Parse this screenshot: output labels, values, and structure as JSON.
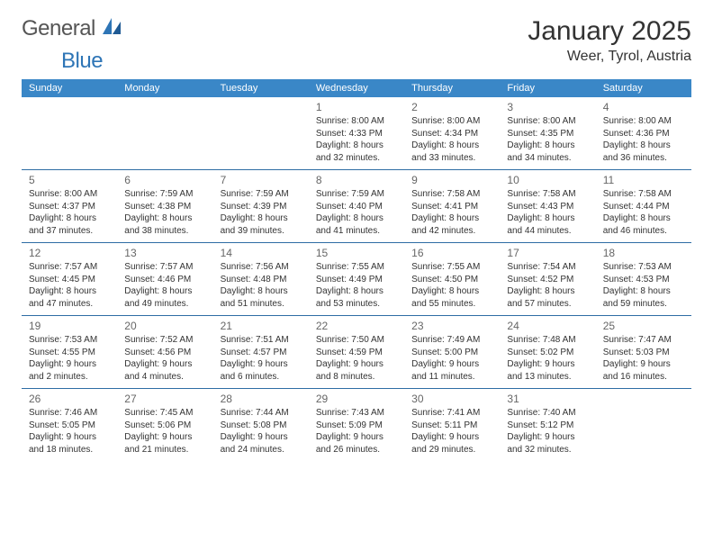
{
  "logo": {
    "text1": "General",
    "text2": "Blue",
    "icon_color": "#2e75b6"
  },
  "title": "January 2025",
  "location": "Weer, Tyrol, Austria",
  "colors": {
    "header_bg": "#3a87c7",
    "header_text": "#ffffff",
    "row_border": "#2e6da4",
    "daynum": "#666666",
    "body_text": "#333333",
    "background": "#ffffff"
  },
  "days_of_week": [
    "Sunday",
    "Monday",
    "Tuesday",
    "Wednesday",
    "Thursday",
    "Friday",
    "Saturday"
  ],
  "weeks": [
    [
      null,
      null,
      null,
      {
        "n": "1",
        "sr": "8:00 AM",
        "ss": "4:33 PM",
        "dh": "8",
        "dm": "32"
      },
      {
        "n": "2",
        "sr": "8:00 AM",
        "ss": "4:34 PM",
        "dh": "8",
        "dm": "33"
      },
      {
        "n": "3",
        "sr": "8:00 AM",
        "ss": "4:35 PM",
        "dh": "8",
        "dm": "34"
      },
      {
        "n": "4",
        "sr": "8:00 AM",
        "ss": "4:36 PM",
        "dh": "8",
        "dm": "36"
      }
    ],
    [
      {
        "n": "5",
        "sr": "8:00 AM",
        "ss": "4:37 PM",
        "dh": "8",
        "dm": "37"
      },
      {
        "n": "6",
        "sr": "7:59 AM",
        "ss": "4:38 PM",
        "dh": "8",
        "dm": "38"
      },
      {
        "n": "7",
        "sr": "7:59 AM",
        "ss": "4:39 PM",
        "dh": "8",
        "dm": "39"
      },
      {
        "n": "8",
        "sr": "7:59 AM",
        "ss": "4:40 PM",
        "dh": "8",
        "dm": "41"
      },
      {
        "n": "9",
        "sr": "7:58 AM",
        "ss": "4:41 PM",
        "dh": "8",
        "dm": "42"
      },
      {
        "n": "10",
        "sr": "7:58 AM",
        "ss": "4:43 PM",
        "dh": "8",
        "dm": "44"
      },
      {
        "n": "11",
        "sr": "7:58 AM",
        "ss": "4:44 PM",
        "dh": "8",
        "dm": "46"
      }
    ],
    [
      {
        "n": "12",
        "sr": "7:57 AM",
        "ss": "4:45 PM",
        "dh": "8",
        "dm": "47"
      },
      {
        "n": "13",
        "sr": "7:57 AM",
        "ss": "4:46 PM",
        "dh": "8",
        "dm": "49"
      },
      {
        "n": "14",
        "sr": "7:56 AM",
        "ss": "4:48 PM",
        "dh": "8",
        "dm": "51"
      },
      {
        "n": "15",
        "sr": "7:55 AM",
        "ss": "4:49 PM",
        "dh": "8",
        "dm": "53"
      },
      {
        "n": "16",
        "sr": "7:55 AM",
        "ss": "4:50 PM",
        "dh": "8",
        "dm": "55"
      },
      {
        "n": "17",
        "sr": "7:54 AM",
        "ss": "4:52 PM",
        "dh": "8",
        "dm": "57"
      },
      {
        "n": "18",
        "sr": "7:53 AM",
        "ss": "4:53 PM",
        "dh": "8",
        "dm": "59"
      }
    ],
    [
      {
        "n": "19",
        "sr": "7:53 AM",
        "ss": "4:55 PM",
        "dh": "9",
        "dm": "2"
      },
      {
        "n": "20",
        "sr": "7:52 AM",
        "ss": "4:56 PM",
        "dh": "9",
        "dm": "4"
      },
      {
        "n": "21",
        "sr": "7:51 AM",
        "ss": "4:57 PM",
        "dh": "9",
        "dm": "6"
      },
      {
        "n": "22",
        "sr": "7:50 AM",
        "ss": "4:59 PM",
        "dh": "9",
        "dm": "8"
      },
      {
        "n": "23",
        "sr": "7:49 AM",
        "ss": "5:00 PM",
        "dh": "9",
        "dm": "11"
      },
      {
        "n": "24",
        "sr": "7:48 AM",
        "ss": "5:02 PM",
        "dh": "9",
        "dm": "13"
      },
      {
        "n": "25",
        "sr": "7:47 AM",
        "ss": "5:03 PM",
        "dh": "9",
        "dm": "16"
      }
    ],
    [
      {
        "n": "26",
        "sr": "7:46 AM",
        "ss": "5:05 PM",
        "dh": "9",
        "dm": "18"
      },
      {
        "n": "27",
        "sr": "7:45 AM",
        "ss": "5:06 PM",
        "dh": "9",
        "dm": "21"
      },
      {
        "n": "28",
        "sr": "7:44 AM",
        "ss": "5:08 PM",
        "dh": "9",
        "dm": "24"
      },
      {
        "n": "29",
        "sr": "7:43 AM",
        "ss": "5:09 PM",
        "dh": "9",
        "dm": "26"
      },
      {
        "n": "30",
        "sr": "7:41 AM",
        "ss": "5:11 PM",
        "dh": "9",
        "dm": "29"
      },
      {
        "n": "31",
        "sr": "7:40 AM",
        "ss": "5:12 PM",
        "dh": "9",
        "dm": "32"
      },
      null
    ]
  ],
  "labels": {
    "sunrise_prefix": "Sunrise: ",
    "sunset_prefix": "Sunset: ",
    "daylight_prefix": "Daylight: ",
    "hours_word": " hours",
    "and_word": "and ",
    "minutes_word": " minutes."
  }
}
